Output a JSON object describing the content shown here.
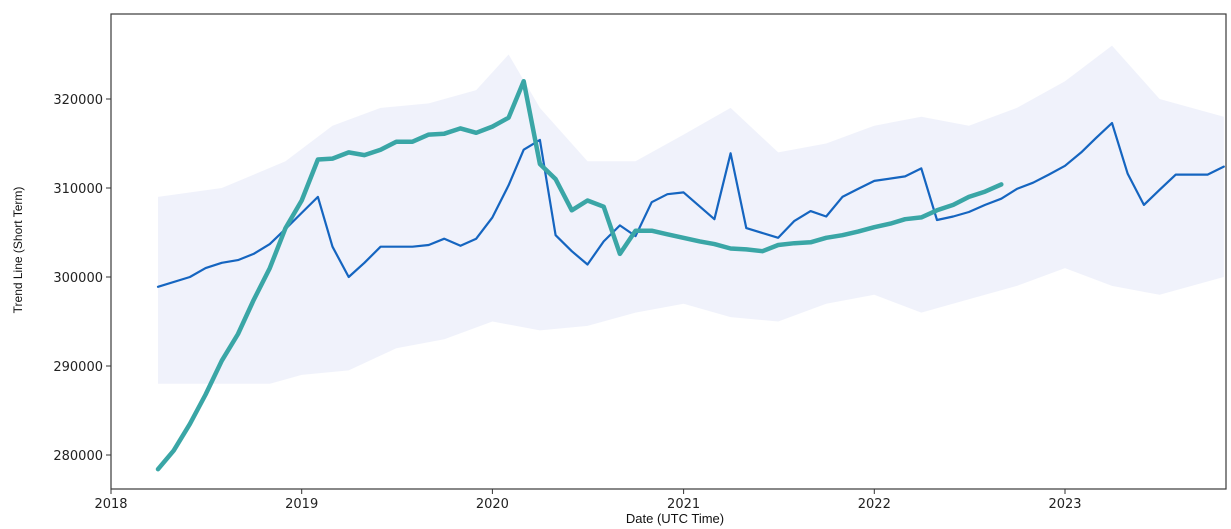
{
  "chart_data": {
    "type": "line",
    "xlabel": "Date (UTC Time)",
    "ylabel": "Trend Line (Short Term)",
    "xlim": [
      "2018-01-01",
      "2023-12-31"
    ],
    "ylim": [
      276000,
      329000
    ],
    "x_ticks": [
      "2018",
      "2019",
      "2020",
      "2021",
      "2022",
      "2023"
    ],
    "y_ticks": [
      "280000",
      "290000",
      "300000",
      "310000",
      "320000"
    ],
    "grid": false,
    "legend": "none",
    "colors": {
      "series_1": "#1565c0",
      "series_2": "#3aa6a6",
      "band": "#e3e7f7"
    },
    "series": [
      {
        "color": "#1565c0",
        "points": [
          [
            "2018-04-01",
            298900
          ],
          [
            "2018-06-01",
            300000
          ],
          [
            "2018-07-01",
            301000
          ],
          [
            "2018-08-01",
            301600
          ],
          [
            "2018-09-01",
            301900
          ],
          [
            "2018-10-01",
            302600
          ],
          [
            "2018-11-01",
            303700
          ],
          [
            "2018-12-01",
            305400
          ],
          [
            "2019-01-01",
            307200
          ],
          [
            "2019-02-01",
            309000
          ],
          [
            "2019-03-01",
            303400
          ],
          [
            "2019-04-01",
            300000
          ],
          [
            "2019-05-01",
            301600
          ],
          [
            "2019-06-01",
            303400
          ],
          [
            "2019-08-01",
            303400
          ],
          [
            "2019-09-01",
            303600
          ],
          [
            "2019-10-01",
            304300
          ],
          [
            "2019-11-01",
            303500
          ],
          [
            "2019-12-01",
            304300
          ],
          [
            "2020-01-01",
            306700
          ],
          [
            "2020-02-01",
            310300
          ],
          [
            "2020-03-01",
            314300
          ],
          [
            "2020-04-01",
            315400
          ],
          [
            "2020-05-01",
            304700
          ],
          [
            "2020-06-01",
            302900
          ],
          [
            "2020-07-01",
            301400
          ],
          [
            "2020-08-01",
            304000
          ],
          [
            "2020-09-01",
            305800
          ],
          [
            "2020-10-01",
            304600
          ],
          [
            "2020-11-01",
            308400
          ],
          [
            "2020-12-01",
            309300
          ],
          [
            "2021-01-01",
            309500
          ],
          [
            "2021-03-01",
            306500
          ],
          [
            "2021-04-01",
            313900
          ],
          [
            "2021-05-01",
            305500
          ],
          [
            "2021-07-01",
            304400
          ],
          [
            "2021-08-01",
            306300
          ],
          [
            "2021-09-01",
            307400
          ],
          [
            "2021-10-01",
            306800
          ],
          [
            "2021-11-01",
            309000
          ],
          [
            "2021-12-01",
            309900
          ],
          [
            "2022-01-01",
            310800
          ],
          [
            "2022-03-01",
            311300
          ],
          [
            "2022-04-01",
            312200
          ],
          [
            "2022-05-01",
            306400
          ],
          [
            "2022-06-01",
            306800
          ],
          [
            "2022-07-01",
            307300
          ],
          [
            "2022-08-01",
            308100
          ],
          [
            "2022-09-01",
            308800
          ],
          [
            "2022-10-01",
            309900
          ],
          [
            "2022-11-01",
            310600
          ],
          [
            "2022-12-01",
            311500
          ],
          [
            "2023-01-01",
            312500
          ],
          [
            "2023-02-01",
            314000
          ],
          [
            "2023-03-01",
            315600
          ],
          [
            "2023-04-01",
            317300
          ],
          [
            "2023-05-01",
            311600
          ],
          [
            "2023-06-01",
            308100
          ],
          [
            "2023-07-01",
            309800
          ],
          [
            "2023-08-01",
            311500
          ],
          [
            "2023-10-01",
            311500
          ],
          [
            "2023-11-01",
            312400
          ]
        ]
      },
      {
        "color": "#3aa6a6",
        "points": [
          [
            "2018-04-01",
            278400
          ],
          [
            "2018-05-01",
            280500
          ],
          [
            "2018-06-01",
            283500
          ],
          [
            "2018-07-01",
            286800
          ],
          [
            "2018-08-01",
            290600
          ],
          [
            "2018-09-01",
            293600
          ],
          [
            "2018-10-01",
            297400
          ],
          [
            "2018-11-01",
            301000
          ],
          [
            "2018-12-01",
            305500
          ],
          [
            "2019-01-01",
            308600
          ],
          [
            "2019-02-01",
            313200
          ],
          [
            "2019-03-01",
            313300
          ],
          [
            "2019-04-01",
            314000
          ],
          [
            "2019-05-01",
            313700
          ],
          [
            "2019-06-01",
            314300
          ],
          [
            "2019-07-01",
            315200
          ],
          [
            "2019-08-01",
            315200
          ],
          [
            "2019-09-01",
            316000
          ],
          [
            "2019-10-01",
            316100
          ],
          [
            "2019-11-01",
            316700
          ],
          [
            "2019-12-01",
            316200
          ],
          [
            "2020-01-01",
            316900
          ],
          [
            "2020-02-01",
            317900
          ],
          [
            "2020-03-01",
            322000
          ],
          [
            "2020-04-01",
            312700
          ],
          [
            "2020-05-01",
            311000
          ],
          [
            "2020-06-01",
            307500
          ],
          [
            "2020-07-01",
            308600
          ],
          [
            "2020-08-01",
            307900
          ],
          [
            "2020-09-01",
            302600
          ],
          [
            "2020-10-01",
            305200
          ],
          [
            "2020-11-01",
            305200
          ],
          [
            "2020-12-01",
            304800
          ],
          [
            "2021-02-01",
            304000
          ],
          [
            "2021-03-01",
            303700
          ],
          [
            "2021-04-01",
            303200
          ],
          [
            "2021-05-01",
            303100
          ],
          [
            "2021-06-01",
            302900
          ],
          [
            "2021-07-01",
            303600
          ],
          [
            "2021-08-01",
            303800
          ],
          [
            "2021-09-01",
            303900
          ],
          [
            "2021-10-01",
            304400
          ],
          [
            "2021-11-01",
            304700
          ],
          [
            "2021-12-01",
            305100
          ],
          [
            "2022-01-01",
            305600
          ],
          [
            "2022-02-01",
            306000
          ],
          [
            "2022-03-01",
            306500
          ],
          [
            "2022-04-01",
            306700
          ],
          [
            "2022-05-01",
            307500
          ],
          [
            "2022-06-01",
            308100
          ],
          [
            "2022-07-01",
            309000
          ],
          [
            "2022-08-01",
            309600
          ],
          [
            "2022-09-01",
            310400
          ]
        ]
      }
    ],
    "band": {
      "upper": [
        [
          "2018-04-01",
          309000
        ],
        [
          "2018-08-01",
          310000
        ],
        [
          "2018-12-01",
          313000
        ],
        [
          "2019-03-01",
          317000
        ],
        [
          "2019-06-01",
          319000
        ],
        [
          "2019-09-01",
          319500
        ],
        [
          "2019-12-01",
          321000
        ],
        [
          "2020-02-01",
          325000
        ],
        [
          "2020-04-01",
          319000
        ],
        [
          "2020-07-01",
          313000
        ],
        [
          "2020-10-01",
          313000
        ],
        [
          "2021-01-01",
          316000
        ],
        [
          "2021-04-01",
          319000
        ],
        [
          "2021-07-01",
          314000
        ],
        [
          "2021-10-01",
          315000
        ],
        [
          "2022-01-01",
          317000
        ],
        [
          "2022-04-01",
          318000
        ],
        [
          "2022-07-01",
          317000
        ],
        [
          "2022-10-01",
          319000
        ],
        [
          "2023-01-01",
          322000
        ],
        [
          "2023-04-01",
          326000
        ],
        [
          "2023-07-01",
          320000
        ],
        [
          "2023-11-01",
          318000
        ]
      ],
      "lower": [
        [
          "2018-11-01",
          288000
        ],
        [
          "2019-01-01",
          289000
        ],
        [
          "2019-04-01",
          289500
        ],
        [
          "2019-07-01",
          292000
        ],
        [
          "2019-10-01",
          293000
        ],
        [
          "2020-01-01",
          295000
        ],
        [
          "2020-04-01",
          294000
        ],
        [
          "2020-07-01",
          294500
        ],
        [
          "2020-10-01",
          296000
        ],
        [
          "2021-01-01",
          297000
        ],
        [
          "2021-04-01",
          295500
        ],
        [
          "2021-07-01",
          295000
        ],
        [
          "2021-10-01",
          297000
        ],
        [
          "2022-01-01",
          298000
        ],
        [
          "2022-04-01",
          296000
        ],
        [
          "2022-07-01",
          297500
        ],
        [
          "2022-10-01",
          299000
        ],
        [
          "2023-01-01",
          301000
        ],
        [
          "2023-04-01",
          299000
        ],
        [
          "2023-07-01",
          298000
        ],
        [
          "2023-11-01",
          300000
        ]
      ]
    }
  }
}
